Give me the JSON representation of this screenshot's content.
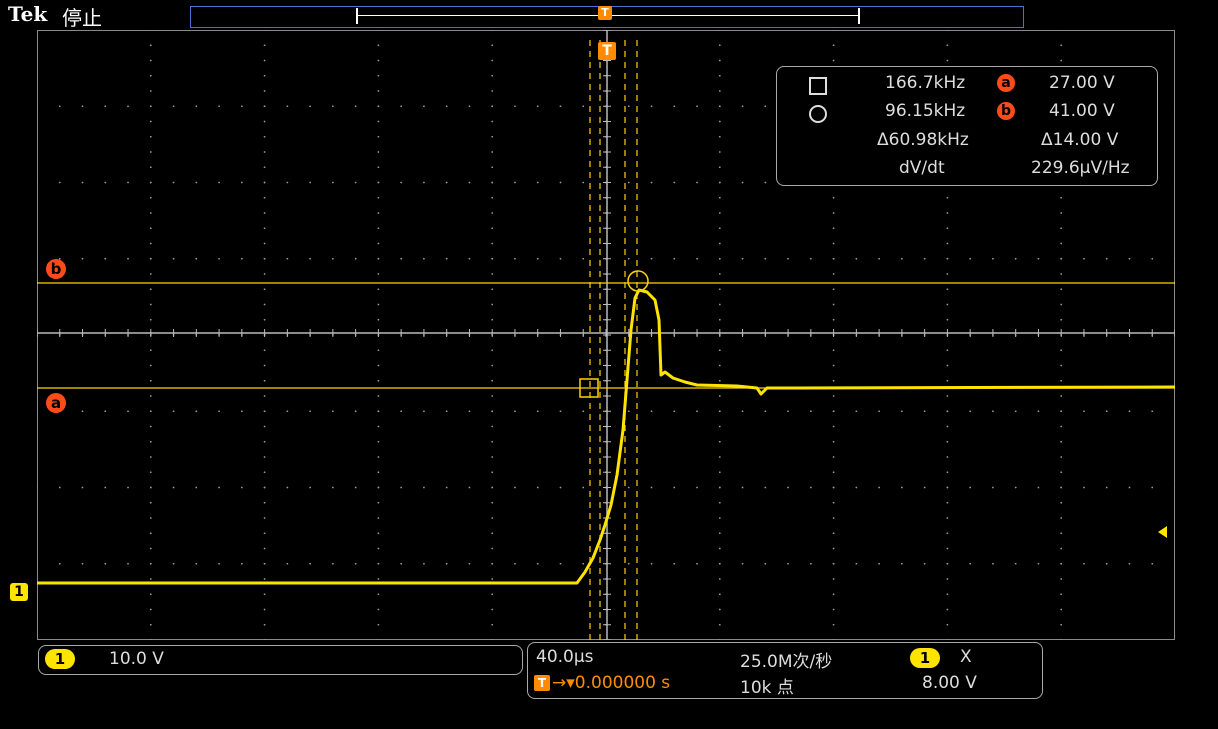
{
  "header": {
    "brand": "Tek",
    "acq_state": "停止"
  },
  "markers": {
    "trigger": "T",
    "cursor_a": "a",
    "cursor_b": "b",
    "channel1": "1"
  },
  "cursor_readout": {
    "cursor1_freq": "166.7kHz",
    "cursor2_freq": "96.15kHz",
    "delta_freq": "Δ60.98kHz",
    "dvdt_label": "dV/dt",
    "a_label": "a",
    "b_label": "b",
    "a_volt": "27.00 V",
    "b_volt": "41.00 V",
    "delta_volt": "Δ14.00 V",
    "dvdt_value": "229.6µV/Hz"
  },
  "channel_panel": {
    "channel": "1",
    "scale": "10.0 V"
  },
  "horizontal_panel": {
    "time_scale": "40.0µs",
    "trigger_position": "→▾0.000000 s",
    "sample_rate": "25.0M次/秒",
    "record_length": "10k 点",
    "trigger_source": "1",
    "trigger_coupling": "X",
    "trigger_level": "8.00 V"
  },
  "colors": {
    "trace": "#ffe400",
    "cursor": "#ffd200",
    "graticule": "#9a9a9a",
    "trigger": "#ff8c00",
    "marker": "#ff4a1a",
    "record_bar": "#4a6fd6"
  }
}
